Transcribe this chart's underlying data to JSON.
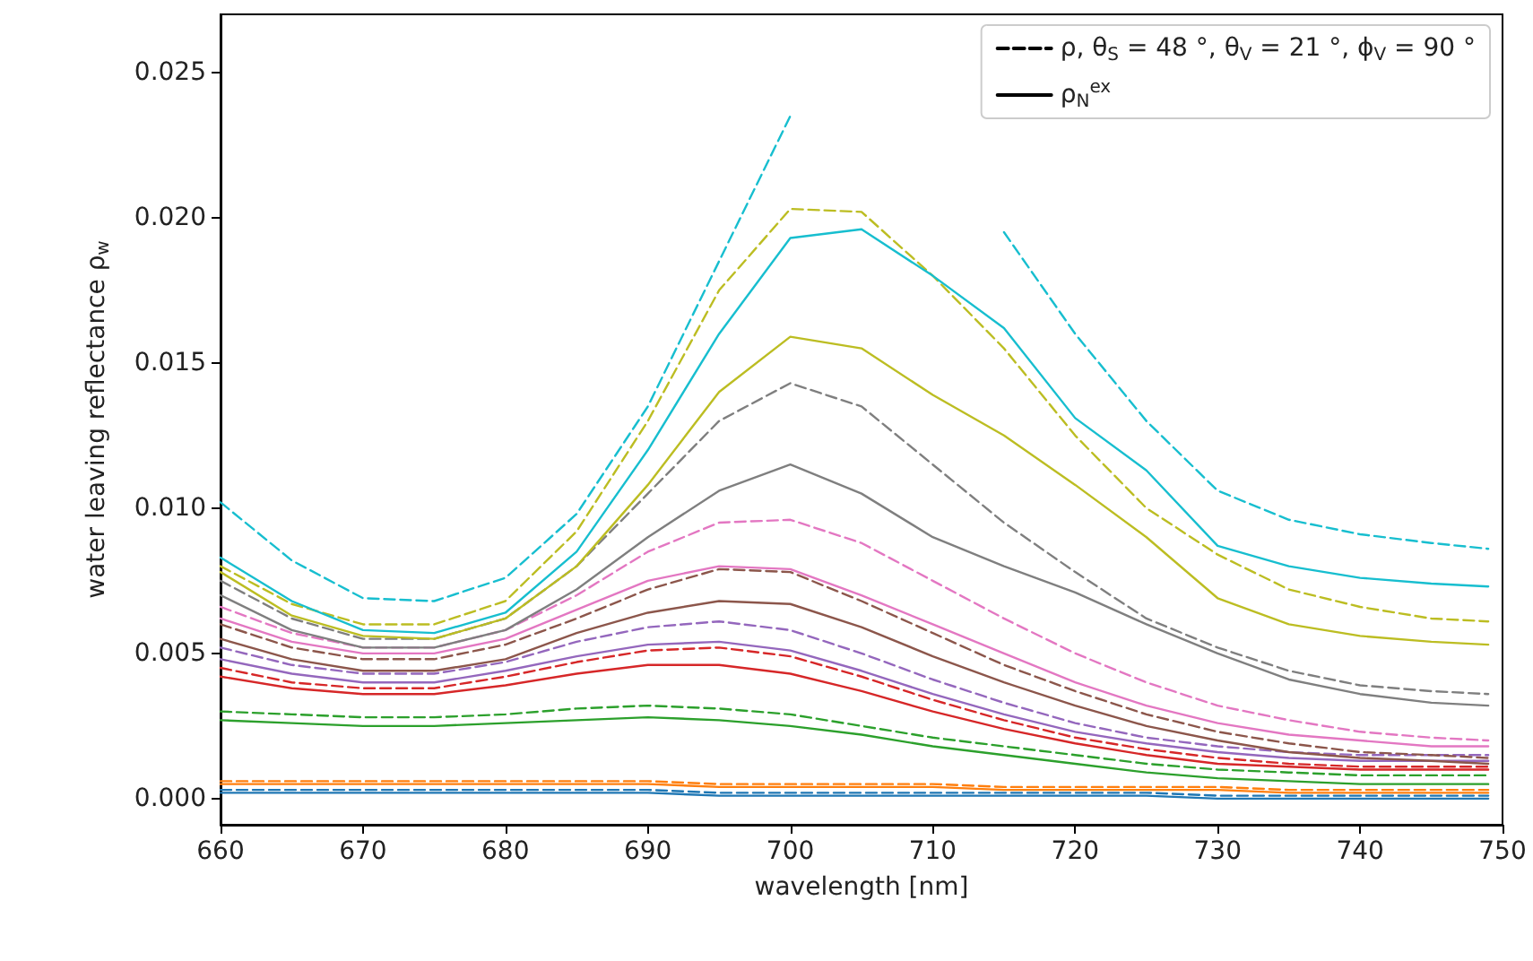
{
  "chart_data": {
    "type": "line",
    "xlabel": "wavelength [nm]",
    "ylabel": "water leaving reflectance ρ$_{w}$",
    "x": [
      660,
      665,
      670,
      675,
      680,
      685,
      690,
      695,
      700,
      705,
      710,
      715,
      720,
      725,
      730,
      735,
      740,
      745,
      749
    ],
    "xlim": [
      660,
      750
    ],
    "xticks": [
      660,
      670,
      680,
      690,
      700,
      710,
      720,
      730,
      740,
      750
    ],
    "ylim": [
      -0.0009,
      0.027
    ],
    "yticks": [
      {
        "value": 0,
        "label": "0.000"
      },
      {
        "value": 0.005,
        "label": "0.005"
      },
      {
        "value": 0.01,
        "label": "0.010"
      },
      {
        "value": 0.015,
        "label": "0.015"
      },
      {
        "value": 0.02,
        "label": "0.020"
      },
      {
        "value": 0.025,
        "label": "0.025"
      }
    ],
    "grid": false,
    "legend": "top right",
    "marker": "none",
    "series": [
      {
        "name": "ρ, θ$_{S}$ = 48 °, θ$_{V}$ = 21 °, ϕ$_{V}$ = 90 °",
        "color": "#000000",
        "line_style": "dashed",
        "values": [
          null,
          null,
          null,
          null,
          null,
          null,
          null,
          null,
          null,
          null,
          null,
          null,
          null,
          null,
          null,
          null,
          null,
          null,
          null
        ]
      },
      {
        "name": "ρ$_{N}$$^{ex}$",
        "color": "#000000",
        "line_style": "solid",
        "values": [
          null,
          null,
          null,
          null,
          null,
          null,
          null,
          null,
          null,
          null,
          null,
          null,
          null,
          null,
          null,
          null,
          null,
          null,
          null
        ]
      },
      {
        "color": "#1f77b4",
        "line_style": "dashed",
        "values": [
          0.0003,
          0.0003,
          0.0003,
          0.0003,
          0.0003,
          0.0003,
          0.0003,
          0.0002,
          0.0002,
          0.0002,
          0.0002,
          0.0002,
          0.0002,
          0.0002,
          0.0001,
          0.0001,
          0.0001,
          0.0001,
          0.0001
        ]
      },
      {
        "color": "#1f77b4",
        "line_style": "solid",
        "values": [
          0.0002,
          0.0002,
          0.0002,
          0.0002,
          0.0002,
          0.0002,
          0.0002,
          0.0001,
          0.0001,
          0.0001,
          0.0001,
          0.0001,
          0.0001,
          0.0001,
          0.0,
          0.0,
          0.0,
          0.0,
          0.0
        ]
      },
      {
        "color": "#ff7f0e",
        "line_style": "dashed",
        "values": [
          0.0006,
          0.0006,
          0.0006,
          0.0006,
          0.0006,
          0.0006,
          0.0006,
          0.0005,
          0.0005,
          0.0005,
          0.0005,
          0.0004,
          0.0004,
          0.0004,
          0.0004,
          0.0003,
          0.0003,
          0.0003,
          0.0003
        ]
      },
      {
        "color": "#ff7f0e",
        "line_style": "solid",
        "values": [
          0.0005,
          0.0005,
          0.0005,
          0.0005,
          0.0005,
          0.0005,
          0.0005,
          0.0004,
          0.0004,
          0.0004,
          0.0004,
          0.0003,
          0.0003,
          0.0003,
          0.0003,
          0.0002,
          0.0002,
          0.0002,
          0.0002
        ]
      },
      {
        "color": "#2ca02c",
        "line_style": "dashed",
        "values": [
          0.003,
          0.0029,
          0.0028,
          0.0028,
          0.0029,
          0.0031,
          0.0032,
          0.0031,
          0.0029,
          0.0025,
          0.0021,
          0.0018,
          0.0015,
          0.0012,
          0.001,
          0.0009,
          0.0008,
          0.0008,
          0.0008
        ]
      },
      {
        "color": "#2ca02c",
        "line_style": "solid",
        "values": [
          0.0027,
          0.0026,
          0.0025,
          0.0025,
          0.0026,
          0.0027,
          0.0028,
          0.0027,
          0.0025,
          0.0022,
          0.0018,
          0.0015,
          0.0012,
          0.0009,
          0.0007,
          0.0006,
          0.0005,
          0.0005,
          0.0005
        ]
      },
      {
        "color": "#d62728",
        "line_style": "dashed",
        "values": [
          0.0045,
          0.004,
          0.0038,
          0.0038,
          0.0042,
          0.0047,
          0.0051,
          0.0052,
          0.0049,
          0.0042,
          0.0034,
          0.0027,
          0.0021,
          0.0017,
          0.0014,
          0.0012,
          0.0011,
          0.0011,
          0.0011
        ]
      },
      {
        "color": "#d62728",
        "line_style": "solid",
        "values": [
          0.0042,
          0.0038,
          0.0036,
          0.0036,
          0.0039,
          0.0043,
          0.0046,
          0.0046,
          0.0043,
          0.0037,
          0.003,
          0.0024,
          0.0019,
          0.0015,
          0.0012,
          0.0011,
          0.001,
          0.001,
          0.001
        ]
      },
      {
        "color": "#9467bd",
        "line_style": "dashed",
        "values": [
          0.0052,
          0.0046,
          0.0043,
          0.0043,
          0.0047,
          0.0054,
          0.0059,
          0.0061,
          0.0058,
          0.005,
          0.0041,
          0.0033,
          0.0026,
          0.0021,
          0.0018,
          0.0016,
          0.0015,
          0.0015,
          0.0015
        ]
      },
      {
        "color": "#9467bd",
        "line_style": "solid",
        "values": [
          0.0048,
          0.0043,
          0.004,
          0.004,
          0.0044,
          0.0049,
          0.0053,
          0.0054,
          0.0051,
          0.0044,
          0.0036,
          0.0029,
          0.0023,
          0.0019,
          0.0016,
          0.0014,
          0.0013,
          0.0013,
          0.0013
        ]
      },
      {
        "color": "#8c564b",
        "line_style": "dashed",
        "values": [
          0.006,
          0.0052,
          0.0048,
          0.0048,
          0.0053,
          0.0062,
          0.0072,
          0.0079,
          0.0078,
          0.0068,
          0.0057,
          0.0046,
          0.0037,
          0.0029,
          0.0023,
          0.0019,
          0.0016,
          0.0015,
          0.0014
        ]
      },
      {
        "color": "#8c564b",
        "line_style": "solid",
        "values": [
          0.0055,
          0.0048,
          0.0044,
          0.0044,
          0.0048,
          0.0057,
          0.0064,
          0.0068,
          0.0067,
          0.0059,
          0.0049,
          0.004,
          0.0032,
          0.0025,
          0.002,
          0.0016,
          0.0014,
          0.0013,
          0.0012
        ]
      },
      {
        "color": "#e377c2",
        "line_style": "dashed",
        "values": [
          0.0066,
          0.0057,
          0.0052,
          0.0052,
          0.0058,
          0.007,
          0.0085,
          0.0095,
          0.0096,
          0.0088,
          0.0075,
          0.0062,
          0.005,
          0.004,
          0.0032,
          0.0027,
          0.0023,
          0.0021,
          0.002
        ]
      },
      {
        "color": "#e377c2",
        "line_style": "solid",
        "values": [
          0.0062,
          0.0054,
          0.005,
          0.005,
          0.0055,
          0.0065,
          0.0075,
          0.008,
          0.0079,
          0.007,
          0.006,
          0.005,
          0.004,
          0.0032,
          0.0026,
          0.0022,
          0.002,
          0.0018,
          0.0018
        ]
      },
      {
        "color": "#7f7f7f",
        "line_style": "dashed",
        "values": [
          0.0075,
          0.0062,
          0.0055,
          0.0055,
          0.0062,
          0.008,
          0.0105,
          0.013,
          0.0143,
          0.0135,
          0.0115,
          0.0095,
          0.0078,
          0.0062,
          0.0052,
          0.0044,
          0.0039,
          0.0037,
          0.0036
        ]
      },
      {
        "color": "#7f7f7f",
        "line_style": "solid",
        "values": [
          0.007,
          0.0058,
          0.0052,
          0.0052,
          0.0058,
          0.0072,
          0.009,
          0.0106,
          0.0115,
          0.0105,
          0.009,
          0.008,
          0.0071,
          0.006,
          0.005,
          0.0041,
          0.0036,
          0.0033,
          0.0032
        ]
      },
      {
        "color": "#bcbd22",
        "line_style": "dashed",
        "values": [
          0.008,
          0.0067,
          0.006,
          0.006,
          0.0068,
          0.0092,
          0.013,
          0.0175,
          0.0203,
          0.0202,
          0.018,
          0.0155,
          0.0125,
          0.01,
          0.0084,
          0.0072,
          0.0066,
          0.0062,
          0.0061
        ]
      },
      {
        "color": "#bcbd22",
        "line_style": "solid",
        "values": [
          0.0078,
          0.0063,
          0.0056,
          0.0055,
          0.0062,
          0.008,
          0.0108,
          0.014,
          0.0159,
          0.0155,
          0.0139,
          0.0125,
          0.0108,
          0.009,
          0.0069,
          0.006,
          0.0056,
          0.0054,
          0.0053
        ]
      },
      {
        "color": "#17becf",
        "line_style": "dashed",
        "values": [
          0.0102,
          0.0082,
          0.0069,
          0.0068,
          0.0076,
          0.0098,
          0.0135,
          0.0185,
          0.0235,
          null,
          null,
          0.0195,
          0.016,
          0.013,
          0.0106,
          0.0096,
          0.0091,
          0.0088,
          0.0086
        ]
      },
      {
        "color": "#17becf",
        "line_style": "solid",
        "values": [
          0.0083,
          0.0068,
          0.0058,
          0.0057,
          0.0064,
          0.0085,
          0.012,
          0.016,
          0.0193,
          0.0196,
          0.018,
          0.0162,
          0.0131,
          0.0113,
          0.0087,
          0.008,
          0.0076,
          0.0074,
          0.0073
        ]
      }
    ]
  }
}
